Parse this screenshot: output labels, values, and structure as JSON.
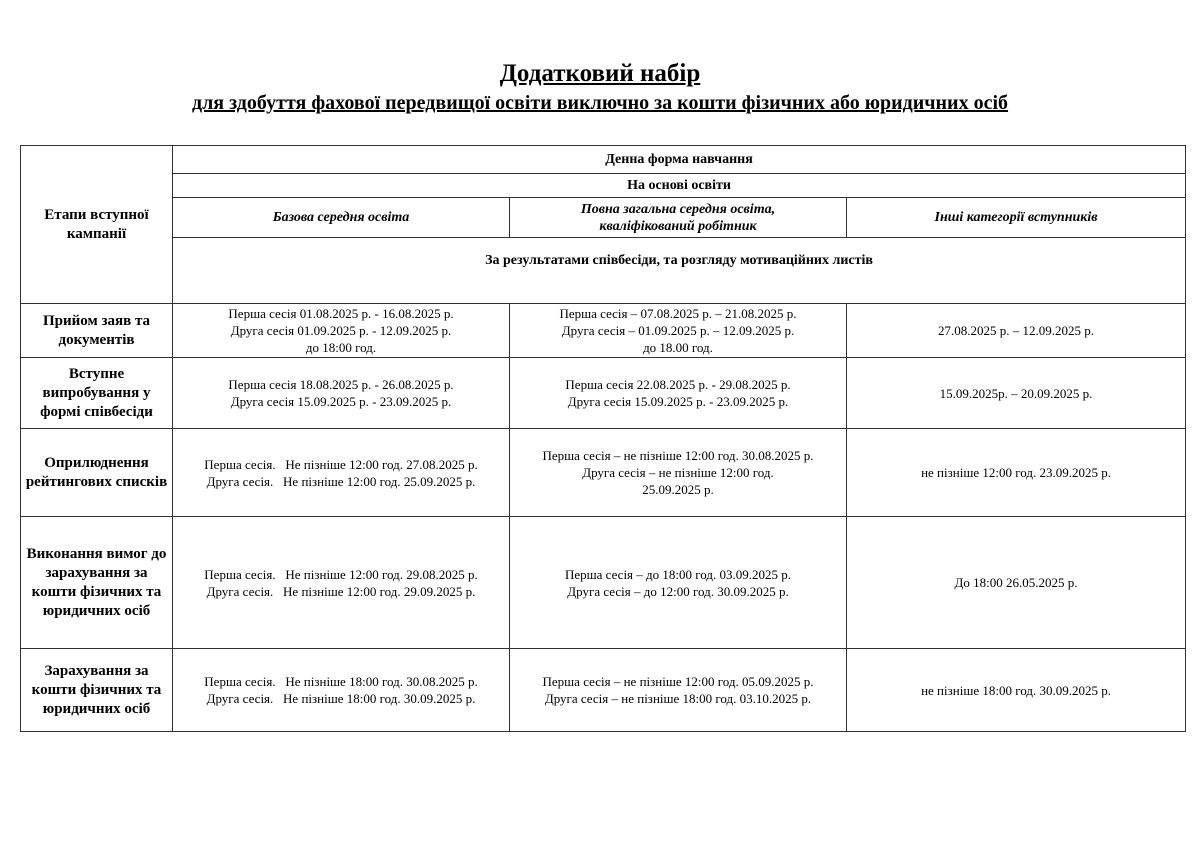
{
  "title": "Додатковий набір",
  "subtitle": "для здобуття фахової передвищої освіти виключно за кошти фізичних або юридичних осіб",
  "table": {
    "stage_header": "Етапи вступної кампанії",
    "form_header": "Денна форма навчання",
    "basis_header": "На основі освіти",
    "columns": [
      "Базова середня освіта",
      "Повна загальна середня освіта, кваліфікований робітник",
      "Інші категорії вступників"
    ],
    "selection_note": "За результатами співбесіди, та розгляду мотиваційних листів",
    "rows": [
      {
        "stage": "Прийом заяв та документів",
        "c1": [
          "Перша сесія 01.08.2025 р. - 16.08.2025 р.",
          "Друга сесія 01.09.2025 р. - 12.09.2025 р.",
          "до 18:00 год."
        ],
        "c2": [
          "Перша сесія – 07.08.2025 р. – 21.08.2025 р.",
          "Друга сесія – 01.09.2025 р. – 12.09.2025 р.",
          "до 18.00 год."
        ],
        "c3": [
          "27.08.2025 р. – 12.09.2025 р."
        ]
      },
      {
        "stage": "Вступне випробування у формі співбесіди",
        "c1": [
          "Перша сесія 18.08.2025 р. - 26.08.2025 р.",
          "Друга сесія 15.09.2025 р. - 23.09.2025 р."
        ],
        "c2": [
          "Перша сесія 22.08.2025 р. - 29.08.2025 р.",
          "Друга сесія 15.09.2025 р. - 23.09.2025 р."
        ],
        "c3": [
          "15.09.2025р. – 20.09.2025 р."
        ]
      },
      {
        "stage": "Оприлюднення рейтингових списків",
        "c1": [
          "Перша сесія.   Не пізніше 12:00 год. 27.08.2025 р.",
          "Друга сесія.   Не пізніше 12:00 год. 25.09.2025 р."
        ],
        "c2": [
          "Перша сесія – не пізніше 12:00 год. 30.08.2025 р.",
          "Друга сесія – не пізніше 12:00 год.",
          "25.09.2025 р."
        ],
        "c3": [
          "не пізніше 12:00 год. 23.09.2025 р."
        ]
      },
      {
        "stage": "Виконання вимог до зарахування за кошти фізичних та юридичних осіб",
        "c1": [
          "Перша сесія.   Не пізніше 12:00 год. 29.08.2025 р.",
          "Друга сесія.   Не пізніше 12:00 год. 29.09.2025 р."
        ],
        "c2": [
          "Перша сесія – до 18:00 год. 03.09.2025 р.",
          "Друга сесія – до 12:00 год. 30.09.2025 р."
        ],
        "c3": [
          "До 18:00 26.05.2025 р."
        ]
      },
      {
        "stage": "Зарахування за кошти фізичних та юридичних осіб",
        "c1": [
          "Перша сесія.   Не пізніше 18:00 год. 30.08.2025 р.",
          "Друга сесія.   Не пізніше 18:00 год. 30.09.2025 р."
        ],
        "c2": [
          "Перша сесія – не пізніше 12:00 год. 05.09.2025 р.",
          "Друга сесія – не пізніше 18:00 год. 03.10.2025 р."
        ],
        "c3": [
          "не пізніше 18:00 год. 30.09.2025 р."
        ]
      }
    ]
  }
}
